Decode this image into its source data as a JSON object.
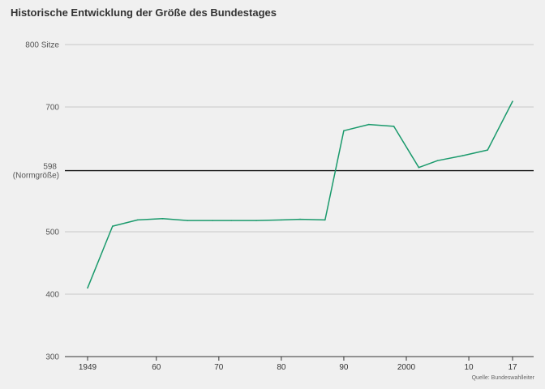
{
  "title": "Historische Entwicklung der Größe des Bundestages",
  "source": "Quelle: Bundeswahlleiter",
  "chart_data": {
    "type": "line",
    "title": "Historische Entwicklung der Größe des Bundestages",
    "xlabel": "",
    "ylabel": "",
    "xlim": [
      1947,
      2020
    ],
    "ylim": [
      300,
      800
    ],
    "grid": true,
    "y_ticks": [
      {
        "value": 800,
        "label": "800 Sitze"
      },
      {
        "value": 700,
        "label": "700"
      },
      {
        "value": 500,
        "label": "500"
      },
      {
        "value": 400,
        "label": "400"
      },
      {
        "value": 300,
        "label": "300"
      }
    ],
    "x_ticks": [
      {
        "value": 1949,
        "label": "1949"
      },
      {
        "value": 1960,
        "label": "60"
      },
      {
        "value": 1970,
        "label": "70"
      },
      {
        "value": 1980,
        "label": "80"
      },
      {
        "value": 1990,
        "label": "90"
      },
      {
        "value": 2000,
        "label": "2000"
      },
      {
        "value": 2010,
        "label": "10"
      },
      {
        "value": 2017,
        "label": "17"
      }
    ],
    "reference_line": {
      "value": 598,
      "label_line1": "598",
      "label_line2": "(Normgröße)"
    },
    "series": [
      {
        "color": "#1a9a6c",
        "x": [
          1949,
          1953,
          1957,
          1961,
          1965,
          1969,
          1972,
          1976,
          1980,
          1983,
          1987,
          1990,
          1994,
          1998,
          2002,
          2005,
          2009,
          2013,
          2017
        ],
        "values": [
          410,
          509,
          519,
          521,
          518,
          518,
          518,
          518,
          519,
          520,
          519,
          662,
          672,
          669,
          603,
          614,
          622,
          631,
          709
        ]
      }
    ]
  }
}
